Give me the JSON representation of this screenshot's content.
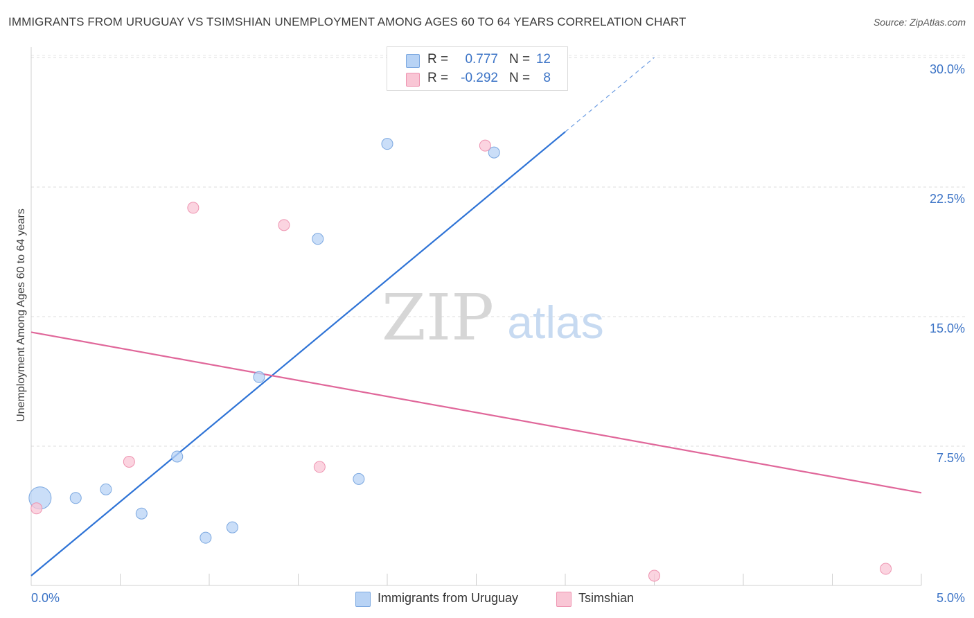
{
  "title": "IMMIGRANTS FROM URUGUAY VS TSIMSHIAN UNEMPLOYMENT AMONG AGES 60 TO 64 YEARS CORRELATION CHART",
  "source": "Source: ZipAtlas.com",
  "watermark": {
    "zip": "ZIP",
    "atlas": "atlas"
  },
  "legend": {
    "rows": [
      {
        "r_label": "R =",
        "r_value": "0.777",
        "n_label": "N =",
        "n_value": "12",
        "color": "#b8d3f5",
        "border": "#7aa7e0"
      },
      {
        "r_label": "R =",
        "r_value": "-0.292",
        "n_label": "N =",
        "n_value": "8",
        "color": "#f9c6d5",
        "border": "#ee93b0"
      }
    ]
  },
  "bottom_legend": [
    "Immigrants from Uruguay",
    "Tsimshian"
  ],
  "chart_data": {
    "type": "scatter",
    "title": "IMMIGRANTS FROM URUGUAY VS TSIMSHIAN UNEMPLOYMENT AMONG AGES 60 TO 64 YEARS CORRELATION CHART",
    "xlabel": "",
    "ylabel": "Unemployment Among Ages 60 to 64 years",
    "xlim": [
      0,
      5
    ],
    "ylim": [
      0,
      30
    ],
    "x_tick_labels": [
      "0.0%",
      "5.0%"
    ],
    "y_ticks": [
      7.5,
      15.0,
      22.5,
      30.0
    ],
    "y_tick_labels": [
      "7.5%",
      "15.0%",
      "22.5%",
      "30.0%"
    ],
    "grid": true,
    "series": [
      {
        "name": "Immigrants from Uruguay",
        "color": "#b8d3f5",
        "edge": "#7aa7e0",
        "line_color": "#2e73d6",
        "points": [
          {
            "x": 0.05,
            "y": 4.5,
            "size": "large"
          },
          {
            "x": 0.25,
            "y": 4.5
          },
          {
            "x": 0.42,
            "y": 5.0
          },
          {
            "x": 0.62,
            "y": 3.6
          },
          {
            "x": 0.82,
            "y": 6.9
          },
          {
            "x": 0.98,
            "y": 2.2
          },
          {
            "x": 1.13,
            "y": 2.8
          },
          {
            "x": 1.28,
            "y": 11.5
          },
          {
            "x": 1.61,
            "y": 19.5
          },
          {
            "x": 1.84,
            "y": 5.6
          },
          {
            "x": 2.0,
            "y": 25.0
          },
          {
            "x": 2.6,
            "y": 24.5
          }
        ],
        "trend": {
          "x0": 0.0,
          "y0": 0.0,
          "x1": 3.0,
          "y1": 25.7,
          "dash_x1": 3.5,
          "dash_y1": 30.0
        }
      },
      {
        "name": "Tsimshian",
        "color": "#f9c6d5",
        "edge": "#ee93b0",
        "line_color": "#e0679a",
        "points": [
          {
            "x": 0.03,
            "y": 3.9
          },
          {
            "x": 0.55,
            "y": 6.6
          },
          {
            "x": 0.91,
            "y": 21.3
          },
          {
            "x": 1.42,
            "y": 20.3
          },
          {
            "x": 1.62,
            "y": 6.3
          },
          {
            "x": 2.55,
            "y": 24.9
          },
          {
            "x": 3.5,
            "y": 0.0
          },
          {
            "x": 4.8,
            "y": 0.4
          }
        ],
        "trend": {
          "x0": 0.0,
          "y0": 14.1,
          "x1": 5.0,
          "y1": 4.8
        }
      }
    ]
  }
}
